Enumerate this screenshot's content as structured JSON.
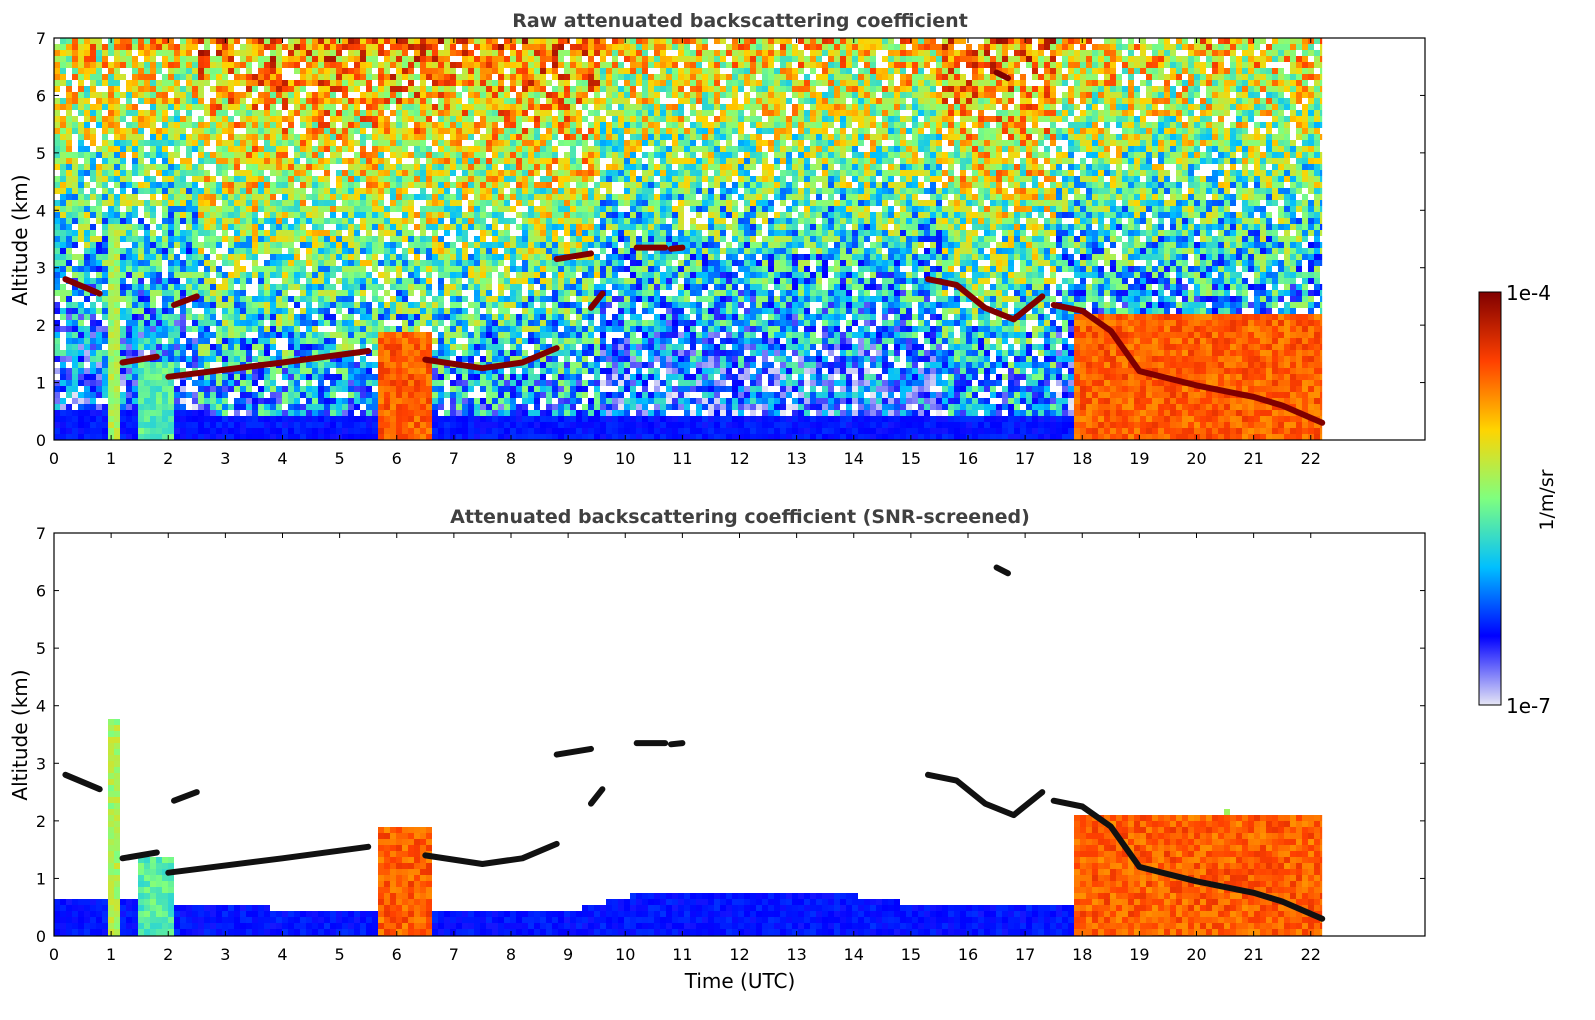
{
  "colors": {
    "jet_stops": [
      "#e6e6f5",
      "#0000ff",
      "#00bfff",
      "#7fff7f",
      "#ffd400",
      "#ff4000",
      "#800000"
    ],
    "cloud_black": "#111111",
    "axes": "#000000",
    "title": "#404040"
  },
  "colorbar": {
    "label": "1/m/sr",
    "max_label": "1e-4",
    "min_label": "1e-7",
    "scale": "log"
  },
  "chart_data": [
    {
      "type": "heatmap",
      "title": "Raw attenuated backscattering coefficient",
      "xlabel": "",
      "ylabel": "Altitude (km)",
      "xlim": [
        0,
        24
      ],
      "ylim": [
        0,
        7
      ],
      "x_ticks": [
        "0",
        "1",
        "2",
        "3",
        "4",
        "5",
        "6",
        "7",
        "8",
        "9",
        "10",
        "11",
        "12",
        "13",
        "14",
        "15",
        "16",
        "17",
        "18",
        "19",
        "20",
        "21",
        "22"
      ],
      "y_ticks": [
        "0",
        "1",
        "2",
        "3",
        "4",
        "5",
        "6",
        "7"
      ],
      "data_end_hour": 22.2,
      "noise": "high",
      "boundary_layer_top_km": [
        [
          0,
          0.62
        ],
        [
          1,
          0.6
        ],
        [
          3,
          0.5
        ],
        [
          6,
          0.45
        ],
        [
          9,
          0.45
        ],
        [
          12,
          0.5
        ],
        [
          15,
          0.5
        ],
        [
          17.8,
          0.5
        ]
      ],
      "cloud_layers": [
        {
          "points": [
            [
              1.2,
              1.35
            ],
            [
              1.8,
              1.45
            ]
          ]
        },
        {
          "points": [
            [
              2.0,
              1.1
            ],
            [
              4.0,
              1.35
            ],
            [
              5.5,
              1.55
            ]
          ]
        },
        {
          "points": [
            [
              6.5,
              1.4
            ],
            [
              7.5,
              1.25
            ],
            [
              8.2,
              1.35
            ],
            [
              8.8,
              1.6
            ]
          ]
        },
        {
          "points": [
            [
              0.2,
              2.8
            ],
            [
              0.8,
              2.55
            ]
          ]
        },
        {
          "points": [
            [
              2.1,
              2.35
            ],
            [
              2.5,
              2.5
            ]
          ]
        },
        {
          "points": [
            [
              8.8,
              3.15
            ],
            [
              9.4,
              3.25
            ]
          ]
        },
        {
          "points": [
            [
              9.4,
              2.3
            ],
            [
              9.6,
              2.55
            ]
          ]
        },
        {
          "points": [
            [
              10.2,
              3.35
            ],
            [
              10.7,
              3.35
            ]
          ]
        },
        {
          "points": [
            [
              10.8,
              3.33
            ],
            [
              11.0,
              3.35
            ]
          ]
        },
        {
          "points": [
            [
              15.3,
              2.8
            ],
            [
              15.8,
              2.7
            ],
            [
              16.3,
              2.3
            ],
            [
              16.8,
              2.1
            ],
            [
              17.3,
              2.5
            ]
          ]
        },
        {
          "points": [
            [
              16.5,
              6.4
            ],
            [
              16.7,
              6.3
            ]
          ]
        },
        {
          "points": [
            [
              17.5,
              2.35
            ],
            [
              18.0,
              2.25
            ],
            [
              18.5,
              1.9
            ],
            [
              19.0,
              1.2
            ],
            [
              20.0,
              0.95
            ],
            [
              21.0,
              0.75
            ],
            [
              21.5,
              0.6
            ],
            [
              22.2,
              0.3
            ]
          ]
        }
      ],
      "plumes": [
        {
          "x": [
            1.4,
            2.0
          ],
          "top_km": 1.4,
          "level": 0.45
        },
        {
          "x": [
            5.6,
            6.6
          ],
          "top_km": 1.95,
          "level": 0.8
        },
        {
          "x": [
            17.8,
            22.2
          ],
          "top_km": 2.2,
          "level": 0.8
        },
        {
          "x": [
            0.9,
            1.1
          ],
          "top_km": 3.8,
          "level": 0.55
        },
        {
          "x": [
            20.45,
            20.55
          ],
          "top_km": 2.3,
          "level": 0.5
        },
        {
          "x": [
            21.15,
            21.3
          ],
          "top_km": 1.5,
          "level": 0.5
        }
      ]
    },
    {
      "type": "heatmap",
      "title": "Attenuated backscattering coefficient (SNR-screened)",
      "xlabel": "Time (UTC)",
      "ylabel": "Altitude (km)",
      "xlim": [
        0,
        24
      ],
      "ylim": [
        0,
        7
      ],
      "x_ticks": [
        "0",
        "1",
        "2",
        "3",
        "4",
        "5",
        "6",
        "7",
        "8",
        "9",
        "10",
        "11",
        "12",
        "13",
        "14",
        "15",
        "16",
        "17",
        "18",
        "19",
        "20",
        "21",
        "22"
      ],
      "y_ticks": [
        "0",
        "1",
        "2",
        "3",
        "4",
        "5",
        "6",
        "7"
      ],
      "data_end_hour": 22.2,
      "noise": "screened",
      "boundary_layer_top_km": [
        [
          0,
          0.7
        ],
        [
          1,
          0.68
        ],
        [
          3,
          0.55
        ],
        [
          6,
          0.5
        ],
        [
          9,
          0.5
        ],
        [
          10,
          0.75
        ],
        [
          12,
          0.8
        ],
        [
          13,
          0.85
        ],
        [
          14,
          0.75
        ],
        [
          15,
          0.6
        ],
        [
          16,
          0.55
        ],
        [
          17.8,
          0.6
        ]
      ],
      "cloud_layers": [
        {
          "points": [
            [
              1.2,
              1.35
            ],
            [
              1.8,
              1.45
            ]
          ]
        },
        {
          "points": [
            [
              2.0,
              1.1
            ],
            [
              4.0,
              1.35
            ],
            [
              5.5,
              1.55
            ]
          ]
        },
        {
          "points": [
            [
              6.5,
              1.4
            ],
            [
              7.5,
              1.25
            ],
            [
              8.2,
              1.35
            ],
            [
              8.8,
              1.6
            ]
          ]
        },
        {
          "points": [
            [
              0.2,
              2.8
            ],
            [
              0.8,
              2.55
            ]
          ]
        },
        {
          "points": [
            [
              2.1,
              2.35
            ],
            [
              2.5,
              2.5
            ]
          ]
        },
        {
          "points": [
            [
              8.8,
              3.15
            ],
            [
              9.4,
              3.25
            ]
          ]
        },
        {
          "points": [
            [
              9.4,
              2.3
            ],
            [
              9.6,
              2.55
            ]
          ]
        },
        {
          "points": [
            [
              10.2,
              3.35
            ],
            [
              10.7,
              3.35
            ]
          ]
        },
        {
          "points": [
            [
              10.8,
              3.33
            ],
            [
              11.0,
              3.35
            ]
          ]
        },
        {
          "points": [
            [
              15.3,
              2.8
            ],
            [
              15.8,
              2.7
            ],
            [
              16.3,
              2.3
            ],
            [
              16.8,
              2.1
            ],
            [
              17.3,
              2.5
            ]
          ]
        },
        {
          "points": [
            [
              16.5,
              6.4
            ],
            [
              16.7,
              6.3
            ]
          ]
        },
        {
          "points": [
            [
              17.5,
              2.35
            ],
            [
              18.0,
              2.25
            ],
            [
              18.5,
              1.9
            ],
            [
              19.0,
              1.2
            ],
            [
              20.0,
              0.95
            ],
            [
              21.0,
              0.75
            ],
            [
              21.5,
              0.6
            ],
            [
              22.2,
              0.3
            ]
          ]
        }
      ],
      "plumes": [
        {
          "x": [
            1.4,
            2.0
          ],
          "top_km": 1.4,
          "level": 0.45
        },
        {
          "x": [
            5.6,
            6.6
          ],
          "top_km": 1.95,
          "level": 0.8
        },
        {
          "x": [
            17.8,
            22.2
          ],
          "top_km": 2.2,
          "level": 0.8
        },
        {
          "x": [
            0.9,
            1.1
          ],
          "top_km": 3.8,
          "level": 0.55
        },
        {
          "x": [
            20.45,
            20.55
          ],
          "top_km": 2.3,
          "level": 0.5
        },
        {
          "x": [
            21.15,
            21.3
          ],
          "top_km": 1.5,
          "level": 0.5
        }
      ]
    }
  ]
}
